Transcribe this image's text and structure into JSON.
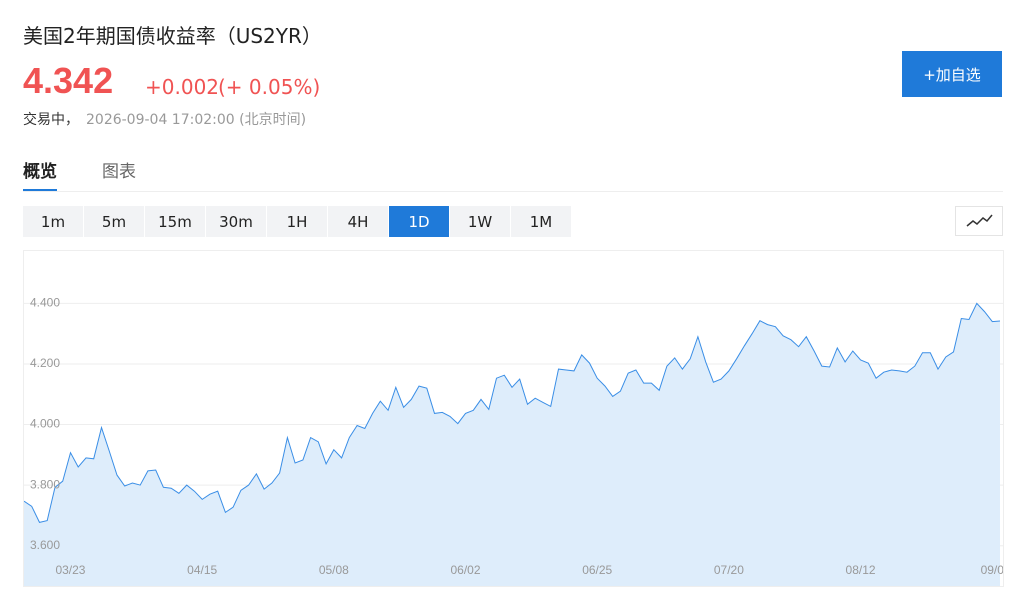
{
  "header": {
    "title": "美国2年期国债收益率（US2YR）",
    "price": "4.342",
    "change": "+0.002",
    "change_percent": "(+ 0.05%)",
    "status": "交易中，",
    "time": "2026-09-04 17:02:00 (北京时间)",
    "button": "+加自选"
  },
  "tabs": [
    "概览",
    "图表"
  ],
  "ranges": [
    "1m",
    "5m",
    "15m",
    "30m",
    "1H",
    "4H",
    "1D",
    "1W",
    "1M"
  ],
  "chart_data": {
    "type": "area",
    "grid": true,
    "categories": [
      null,
      null,
      null,
      null,
      null,
      null,
      "03/23",
      null,
      null,
      null,
      null,
      null,
      null,
      null,
      null,
      null,
      null,
      null,
      null,
      null,
      null,
      null,
      null,
      "04/15",
      null,
      null,
      null,
      null,
      null,
      null,
      null,
      null,
      null,
      null,
      null,
      null,
      null,
      null,
      null,
      null,
      "05/08",
      null,
      null,
      null,
      null,
      null,
      null,
      null,
      null,
      null,
      null,
      null,
      null,
      null,
      null,
      null,
      null,
      "06/02",
      null,
      null,
      null,
      null,
      null,
      null,
      null,
      null,
      null,
      null,
      null,
      null,
      null,
      null,
      null,
      null,
      "06/25",
      null,
      null,
      null,
      null,
      null,
      null,
      null,
      null,
      null,
      null,
      null,
      null,
      null,
      null,
      null,
      null,
      "07/20",
      null,
      null,
      null,
      null,
      null,
      null,
      null,
      null,
      null,
      null,
      null,
      null,
      null,
      null,
      null,
      null,
      "08/12",
      null,
      null,
      null,
      null,
      null,
      null,
      null,
      null,
      null,
      null,
      null,
      null,
      null,
      null,
      null,
      null,
      "09/0",
      null
    ],
    "series": [
      {
        "color": "#3a8ee6",
        "fill": "#deedfb",
        "values": [
          3.747,
          3.73,
          3.677,
          3.683,
          3.793,
          3.813,
          3.907,
          3.86,
          3.89,
          3.887,
          3.99,
          3.913,
          3.833,
          3.797,
          3.807,
          3.8,
          3.847,
          3.85,
          3.793,
          3.79,
          3.773,
          3.8,
          3.78,
          3.753,
          3.77,
          3.78,
          3.71,
          3.727,
          3.783,
          3.8,
          3.837,
          3.787,
          3.807,
          3.84,
          3.957,
          3.873,
          3.883,
          3.957,
          3.943,
          3.87,
          3.917,
          3.89,
          3.957,
          3.997,
          3.987,
          4.037,
          4.077,
          4.047,
          4.123,
          4.057,
          4.083,
          4.127,
          4.12,
          4.037,
          4.04,
          4.027,
          4.003,
          4.037,
          4.047,
          4.083,
          4.05,
          4.153,
          4.163,
          4.123,
          4.15,
          4.067,
          4.087,
          4.073,
          4.06,
          4.183,
          4.18,
          4.177,
          4.23,
          4.203,
          4.153,
          4.127,
          4.093,
          4.11,
          4.17,
          4.18,
          4.137,
          4.137,
          4.113,
          4.193,
          4.22,
          4.183,
          4.217,
          4.29,
          4.207,
          4.14,
          4.15,
          4.177,
          4.217,
          4.26,
          4.3,
          4.343,
          4.33,
          4.323,
          4.293,
          4.28,
          4.257,
          4.29,
          4.243,
          4.193,
          4.19,
          4.253,
          4.207,
          4.243,
          4.213,
          4.203,
          4.153,
          4.173,
          4.18,
          4.177,
          4.173,
          4.193,
          4.237,
          4.237,
          4.183,
          4.223,
          4.24,
          4.35,
          4.347,
          4.4,
          4.373,
          4.34,
          4.342
        ]
      }
    ],
    "ylim": [
      3.467,
      4.573
    ],
    "yticks": [
      {
        "value": 3.6,
        "label": "3.600"
      },
      {
        "value": 3.8,
        "label": "3.800"
      },
      {
        "value": 4.0,
        "label": "4.000"
      },
      {
        "value": 4.2,
        "label": "4.200"
      },
      {
        "value": 4.4,
        "label": "4.400"
      }
    ]
  }
}
